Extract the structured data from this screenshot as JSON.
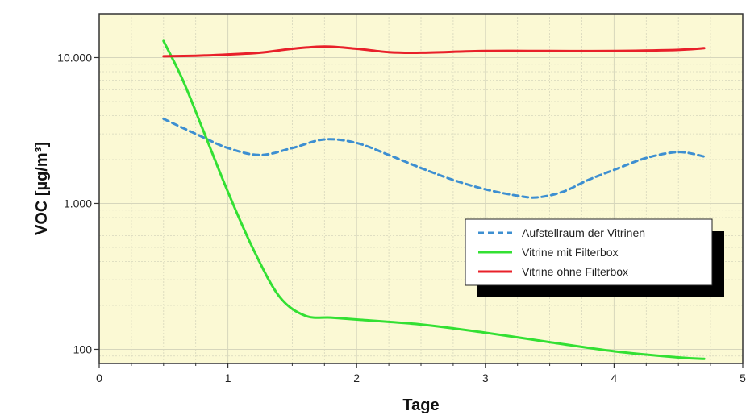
{
  "chart_data": {
    "type": "line",
    "xlabel": "Tage",
    "ylabel": "VOC [µg/m³]",
    "xlim": [
      0,
      5
    ],
    "ylim": [
      80,
      20000
    ],
    "y_scale": "log",
    "grid": true,
    "legend_position": "bottom-right",
    "colors": {
      "plot_background": "#fbf9d4",
      "grid": "#d6d6bc",
      "frame": "#333333"
    },
    "x_ticks": [
      {
        "value": 0,
        "label": "0"
      },
      {
        "value": 1,
        "label": "1"
      },
      {
        "value": 2,
        "label": "2"
      },
      {
        "value": 3,
        "label": "3"
      },
      {
        "value": 4,
        "label": "4"
      },
      {
        "value": 5,
        "label": "5"
      }
    ],
    "y_ticks": [
      {
        "value": 100,
        "label": "100"
      },
      {
        "value": 1000,
        "label": "1.000"
      },
      {
        "value": 10000,
        "label": "10.000"
      }
    ],
    "series": [
      {
        "name": "Aufstellraum der Vitrinen",
        "color": "#3d8fd1",
        "style": "dashed",
        "x": [
          0.5,
          0.75,
          1.0,
          1.25,
          1.5,
          1.75,
          2.0,
          2.25,
          2.5,
          2.75,
          3.0,
          3.25,
          3.4,
          3.6,
          3.8,
          4.0,
          4.25,
          4.5,
          4.7
        ],
        "y": [
          3800,
          3000,
          2400,
          2150,
          2400,
          2750,
          2600,
          2150,
          1750,
          1450,
          1250,
          1130,
          1100,
          1200,
          1450,
          1700,
          2050,
          2250,
          2100
        ]
      },
      {
        "name": "Vitrine mit Filterbox",
        "color": "#33e033",
        "style": "solid",
        "x": [
          0.5,
          0.65,
          0.8,
          1.0,
          1.2,
          1.4,
          1.6,
          1.8,
          2.0,
          2.5,
          3.0,
          3.5,
          4.0,
          4.5,
          4.7
        ],
        "y": [
          13000,
          7000,
          3300,
          1200,
          480,
          230,
          170,
          165,
          160,
          148,
          130,
          112,
          97,
          88,
          86
        ]
      },
      {
        "name": "Vitrine ohne Filterbox",
        "color": "#e8202a",
        "style": "solid",
        "x": [
          0.5,
          0.75,
          1.0,
          1.25,
          1.5,
          1.75,
          2.0,
          2.25,
          2.5,
          3.0,
          3.5,
          4.0,
          4.5,
          4.7
        ],
        "y": [
          10200,
          10300,
          10500,
          10800,
          11500,
          11900,
          11500,
          10900,
          10800,
          11100,
          11100,
          11100,
          11300,
          11600
        ]
      }
    ]
  }
}
